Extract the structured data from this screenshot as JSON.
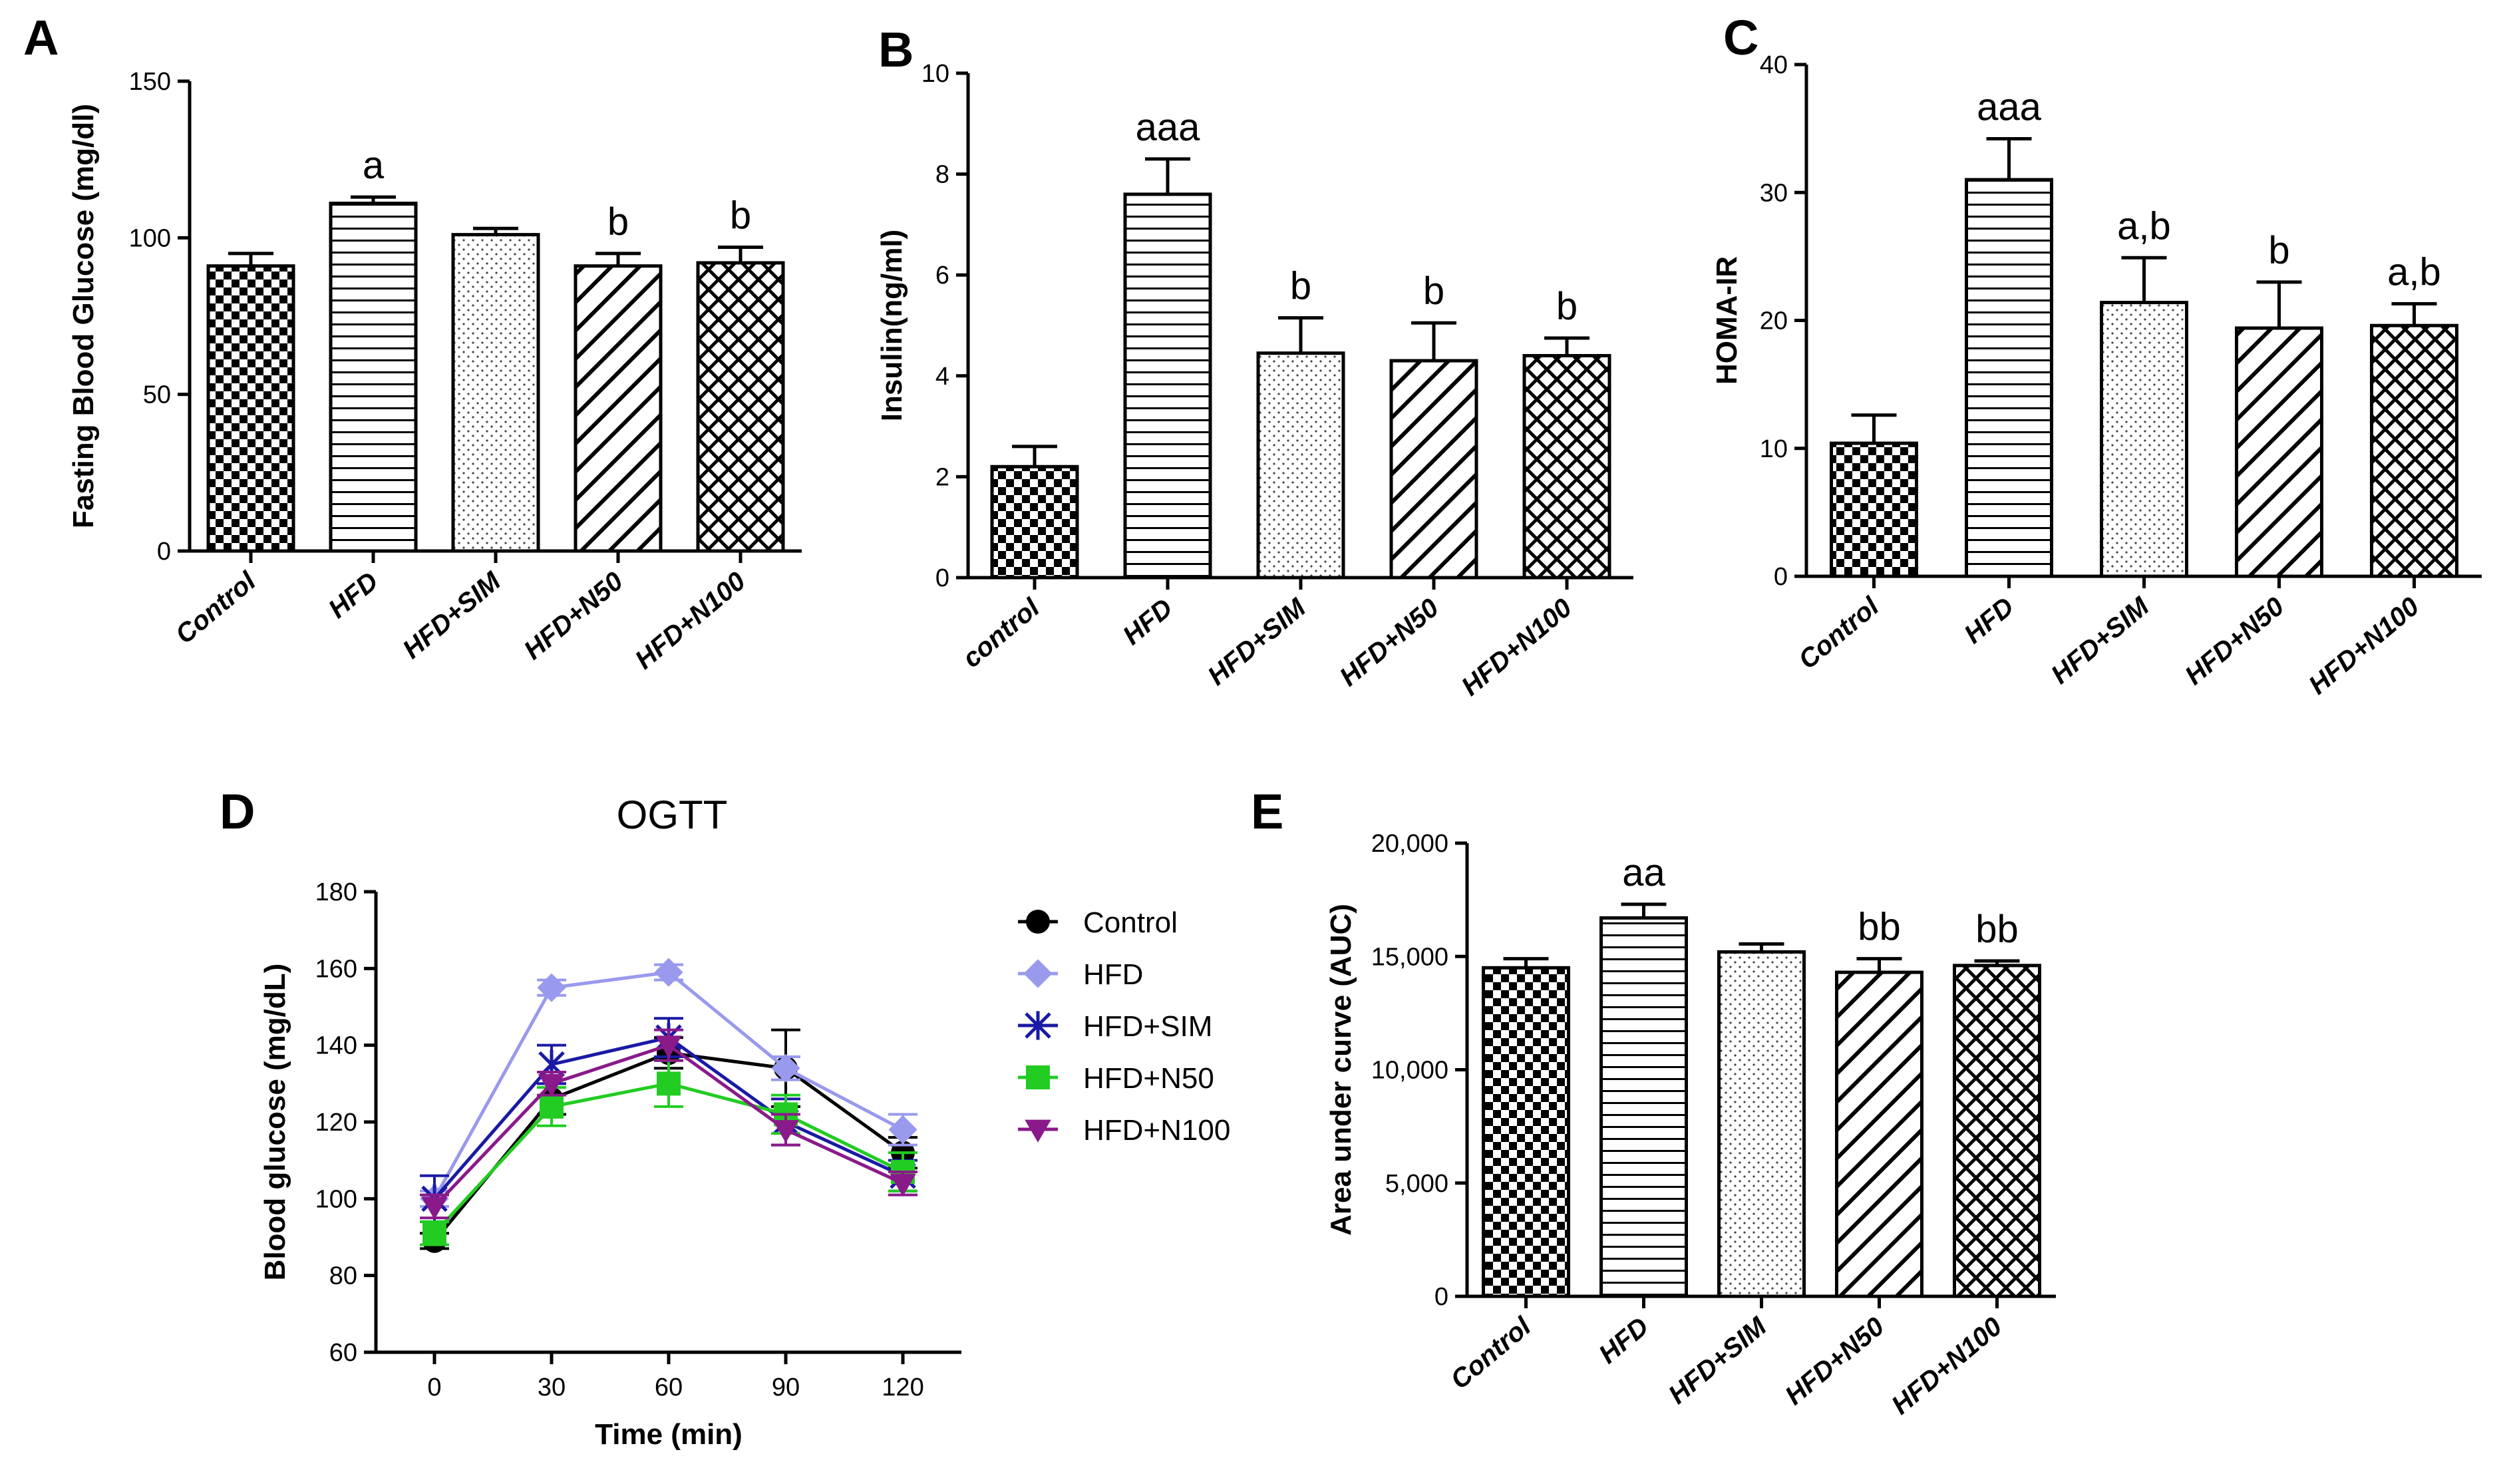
{
  "chart_data": [
    {
      "id": "A",
      "type": "bar",
      "panel_label": "A",
      "title": "",
      "ylabel": "Fasting Blood Glucose (mg/dl)",
      "xlabel": "",
      "ylim": [
        0,
        150
      ],
      "yticks": [
        0,
        50,
        100,
        150
      ],
      "ytick_labels": [
        "0",
        "50",
        "100",
        "150"
      ],
      "categories": [
        "Control",
        "HFD",
        "HFD+SIM",
        "HFD+N50",
        "HFD+N100"
      ],
      "values": [
        91,
        111,
        101,
        91,
        92
      ],
      "errors": [
        4,
        2,
        2,
        4,
        5
      ],
      "annotations": [
        "",
        "a",
        "",
        "b",
        "b"
      ],
      "patterns": [
        "checker",
        "hlines",
        "dots",
        "diag",
        "cross"
      ]
    },
    {
      "id": "B",
      "type": "bar",
      "panel_label": "B",
      "title": "",
      "ylabel": "Insulin(ng/ml)",
      "xlabel": "",
      "ylim": [
        0,
        10
      ],
      "yticks": [
        0,
        2,
        4,
        6,
        8,
        10
      ],
      "ytick_labels": [
        "0",
        "2",
        "4",
        "6",
        "8",
        "10"
      ],
      "categories": [
        "control",
        "HFD",
        "HFD+SIM",
        "HFD+N50",
        "HFD+N100"
      ],
      "values": [
        2.2,
        7.6,
        4.45,
        4.3,
        4.4
      ],
      "errors": [
        0.4,
        0.7,
        0.7,
        0.75,
        0.35
      ],
      "annotations": [
        "",
        "aaa",
        "b",
        "b",
        "b"
      ],
      "patterns": [
        "checker",
        "hlines",
        "dots",
        "diag",
        "cross"
      ]
    },
    {
      "id": "C",
      "type": "bar",
      "panel_label": "C",
      "title": "",
      "ylabel": "HOMA-IR",
      "xlabel": "",
      "ylim": [
        0,
        40
      ],
      "yticks": [
        0,
        10,
        20,
        30,
        40
      ],
      "ytick_labels": [
        "0",
        "10",
        "20",
        "30",
        "40"
      ],
      "categories": [
        "Control",
        "HFD",
        "HFD+SIM",
        "HFD+N50",
        "HFD+N100"
      ],
      "values": [
        10.4,
        31,
        21.4,
        19.4,
        19.6
      ],
      "errors": [
        2.2,
        3.2,
        3.5,
        3.6,
        1.7
      ],
      "annotations": [
        "",
        "aaa",
        "a,b",
        "b",
        "a,b"
      ],
      "patterns": [
        "checker",
        "hlines",
        "dots",
        "diag",
        "cross"
      ]
    },
    {
      "id": "D",
      "type": "line",
      "panel_label": "D",
      "title": "OGTT",
      "ylabel": "Blood glucose (mg/dL)",
      "xlabel": "Time (min)",
      "x": [
        0,
        30,
        60,
        90,
        120
      ],
      "xtick_labels": [
        "0",
        "30",
        "60",
        "90",
        "120"
      ],
      "xlim": [
        -15,
        135
      ],
      "ylim": [
        60,
        180
      ],
      "yticks": [
        60,
        80,
        100,
        120,
        140,
        160,
        180
      ],
      "ytick_labels": [
        "60",
        "80",
        "100",
        "120",
        "140",
        "160",
        "180"
      ],
      "legend_position": "right",
      "series": [
        {
          "name": "Control",
          "values": [
            89,
            126,
            138,
            134,
            112
          ],
          "errors": [
            2,
            4,
            4,
            10,
            4
          ],
          "color": "#000000",
          "marker": "circle"
        },
        {
          "name": "HFD",
          "values": [
            100,
            155,
            159,
            134,
            118
          ],
          "errors": [
            2,
            2,
            2,
            3,
            4
          ],
          "color": "#9999ee",
          "marker": "diamond"
        },
        {
          "name": "HFD+SIM",
          "values": [
            100,
            135,
            142,
            120,
            106
          ],
          "errors": [
            6,
            5,
            5,
            6,
            4
          ],
          "color": "#1a1aa6",
          "marker": "star"
        },
        {
          "name": "HFD+N50",
          "values": [
            91,
            124,
            130,
            122,
            107
          ],
          "errors": [
            3,
            5,
            6,
            5,
            5
          ],
          "color": "#22cc22",
          "marker": "square"
        },
        {
          "name": "HFD+N100",
          "values": [
            98,
            130,
            140,
            118,
            104
          ],
          "errors": [
            3,
            3,
            4,
            4,
            3
          ],
          "color": "#8a1a8a",
          "marker": "triangle-down"
        }
      ]
    },
    {
      "id": "E",
      "type": "bar",
      "panel_label": "E",
      "title": "",
      "ylabel": "Area under curve (AUC)",
      "xlabel": "",
      "ylim": [
        0,
        20000
      ],
      "yticks": [
        0,
        5000,
        10000,
        15000,
        20000
      ],
      "ytick_labels": [
        "0",
        "5,000",
        "10,000",
        "15,000",
        "20,000"
      ],
      "categories": [
        "Control",
        "HFD",
        "HFD+SIM",
        "HFD+N50",
        "HFD+N100"
      ],
      "values": [
        14500,
        16700,
        15200,
        14300,
        14600
      ],
      "errors": [
        400,
        600,
        350,
        600,
        200
      ],
      "annotations": [
        "",
        "aa",
        "",
        "bb",
        "bb"
      ],
      "patterns": [
        "checker",
        "hlines",
        "dots",
        "diag",
        "cross"
      ]
    }
  ]
}
